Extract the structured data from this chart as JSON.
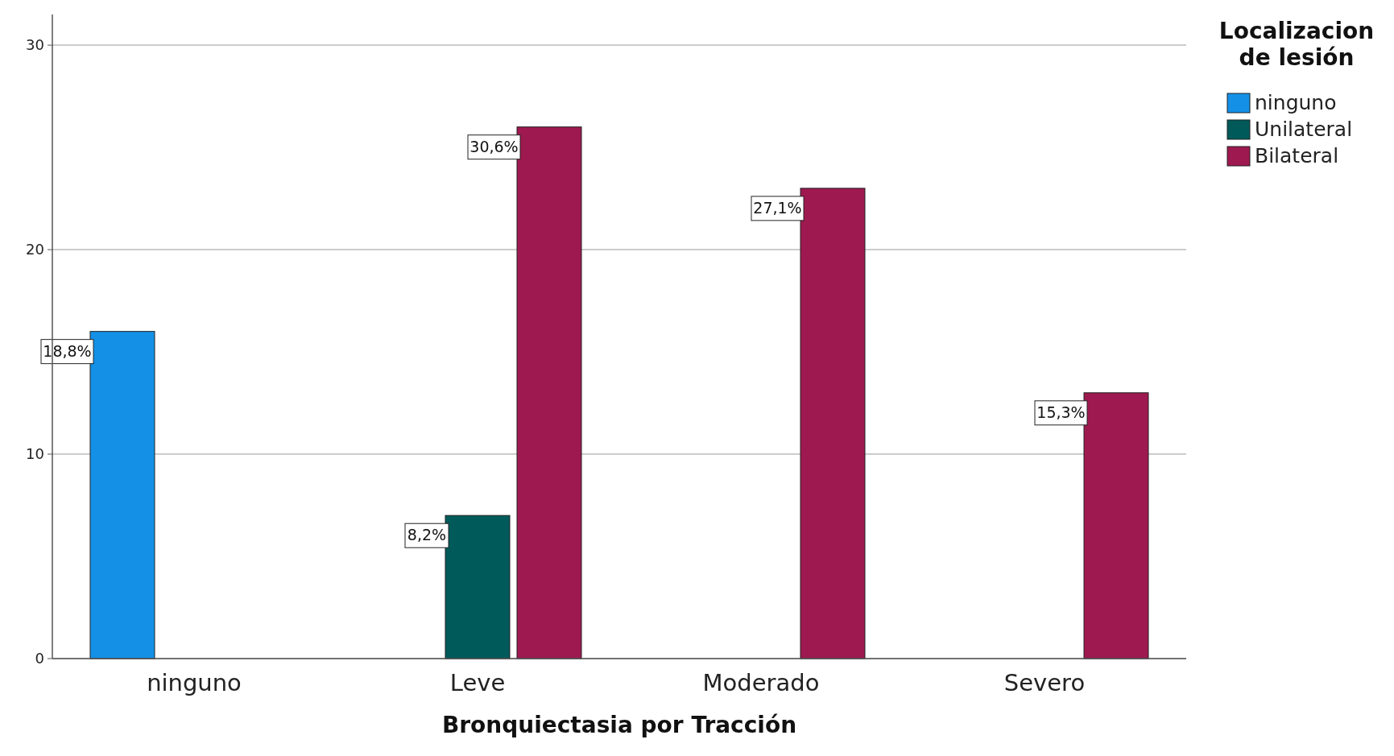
{
  "chart_data": {
    "type": "bar",
    "xlabel": "Bronquiectasia por Tracción",
    "legend_title": "Localizacion de lesión",
    "categories": [
      "ninguno",
      "Leve",
      "Moderado",
      "Severo"
    ],
    "series": [
      {
        "name": "ninguno",
        "color": "#1490e6",
        "values": [
          16,
          null,
          null,
          null
        ]
      },
      {
        "name": "Unilateral",
        "color": "#005a5a",
        "values": [
          null,
          7,
          null,
          null
        ]
      },
      {
        "name": "Bilateral",
        "color": "#9e1950",
        "values": [
          null,
          26,
          23,
          13
        ]
      }
    ],
    "annotations": [
      "18,8%",
      "8,2%",
      "30,6%",
      "27,1%",
      "15,3%"
    ],
    "ylim": [
      0,
      31.5
    ],
    "yticks": [
      0,
      10,
      20,
      30
    ],
    "grid": "y",
    "legend": "top right"
  }
}
